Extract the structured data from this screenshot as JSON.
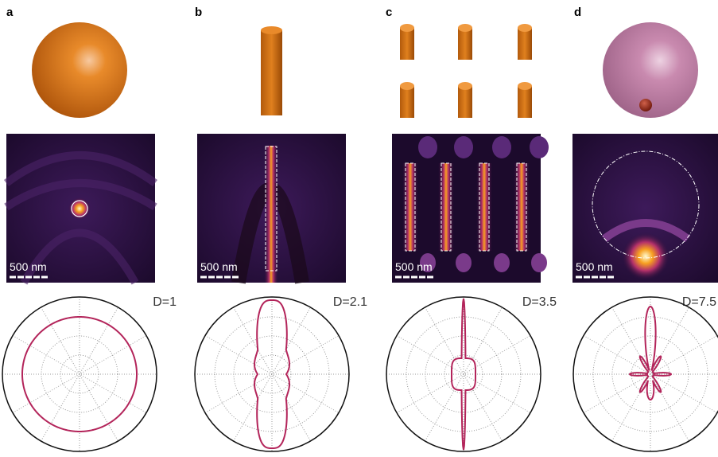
{
  "panels": [
    {
      "label": "a",
      "scale_bar": "500 nm",
      "directivity": "D=1"
    },
    {
      "label": "b",
      "scale_bar": "500 nm",
      "directivity": "D=2.1"
    },
    {
      "label": "c",
      "scale_bar": "500 nm",
      "directivity": "D=3.5"
    },
    {
      "label": "d",
      "scale_bar": "500 nm",
      "directivity": "D=7.5"
    }
  ]
}
